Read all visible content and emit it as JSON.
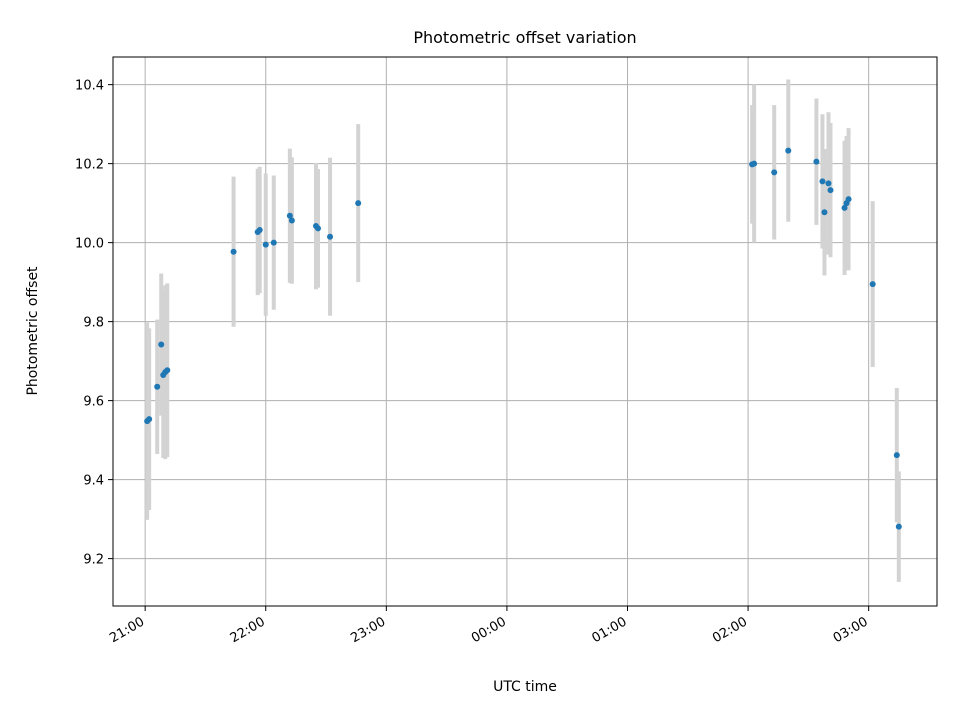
{
  "chart_data": {
    "type": "scatter",
    "title": "Photometric offset variation",
    "xlabel": "UTC time",
    "ylabel": "Photometric offset",
    "x_axis_type": "time",
    "xlim": [
      "20:44",
      "03:34"
    ],
    "ylim": [
      9.08,
      10.47
    ],
    "x_ticks": [
      {
        "time": "21:00",
        "label": "21:00"
      },
      {
        "time": "22:00",
        "label": "22:00"
      },
      {
        "time": "23:00",
        "label": "23:00"
      },
      {
        "time": "00:00",
        "label": "00:00"
      },
      {
        "time": "01:00",
        "label": "01:00"
      },
      {
        "time": "02:00",
        "label": "02:00"
      },
      {
        "time": "03:00",
        "label": "03:00"
      }
    ],
    "y_ticks": [
      {
        "value": 9.2,
        "label": "9.2"
      },
      {
        "value": 9.4,
        "label": "9.4"
      },
      {
        "value": 9.6,
        "label": "9.6"
      },
      {
        "value": 9.8,
        "label": "9.8"
      },
      {
        "value": 10.0,
        "label": "10.0"
      },
      {
        "value": 10.2,
        "label": "10.2"
      },
      {
        "value": 10.4,
        "label": "10.4"
      }
    ],
    "grid": true,
    "legend": false,
    "colors": {
      "point": "#1f77b4",
      "errorbar": "#d3d3d3",
      "grid": "#b0b0b0"
    },
    "points": [
      {
        "time": "21:01",
        "y": 9.548,
        "err": 0.25
      },
      {
        "time": "21:02",
        "y": 9.553,
        "err": 0.23
      },
      {
        "time": "21:06",
        "y": 9.635,
        "err": 0.17
      },
      {
        "time": "21:08",
        "y": 9.742,
        "err": 0.18
      },
      {
        "time": "21:09",
        "y": 9.665,
        "err": 0.21
      },
      {
        "time": "21:10",
        "y": 9.672,
        "err": 0.22
      },
      {
        "time": "21:11",
        "y": 9.677,
        "err": 0.22
      },
      {
        "time": "21:44",
        "y": 9.977,
        "err": 0.19
      },
      {
        "time": "21:56",
        "y": 10.027,
        "err": 0.16
      },
      {
        "time": "21:57",
        "y": 10.032,
        "err": 0.16
      },
      {
        "time": "22:00",
        "y": 9.995,
        "err": 0.18
      },
      {
        "time": "22:04",
        "y": 10.0,
        "err": 0.17
      },
      {
        "time": "22:12",
        "y": 10.068,
        "err": 0.17
      },
      {
        "time": "22:13",
        "y": 10.056,
        "err": 0.16
      },
      {
        "time": "22:25",
        "y": 10.042,
        "err": 0.16
      },
      {
        "time": "22:26",
        "y": 10.036,
        "err": 0.15
      },
      {
        "time": "22:32",
        "y": 10.015,
        "err": 0.2
      },
      {
        "time": "22:46",
        "y": 10.1,
        "err": 0.2
      },
      {
        "time": "02:02",
        "y": 10.198,
        "err": 0.15
      },
      {
        "time": "02:03",
        "y": 10.2,
        "err": 0.2
      },
      {
        "time": "02:13",
        "y": 10.178,
        "err": 0.17
      },
      {
        "time": "02:20",
        "y": 10.233,
        "err": 0.18
      },
      {
        "time": "02:34",
        "y": 10.205,
        "err": 0.16
      },
      {
        "time": "02:37",
        "y": 10.155,
        "err": 0.17
      },
      {
        "time": "02:38",
        "y": 10.077,
        "err": 0.16
      },
      {
        "time": "02:40",
        "y": 10.15,
        "err": 0.18
      },
      {
        "time": "02:41",
        "y": 10.133,
        "err": 0.17
      },
      {
        "time": "02:48",
        "y": 10.088,
        "err": 0.17
      },
      {
        "time": "02:49",
        "y": 10.1,
        "err": 0.17
      },
      {
        "time": "02:50",
        "y": 10.11,
        "err": 0.18
      },
      {
        "time": "03:02",
        "y": 9.895,
        "err": 0.21
      },
      {
        "time": "03:14",
        "y": 9.462,
        "err": 0.17
      },
      {
        "time": "03:15",
        "y": 9.281,
        "err": 0.14
      }
    ]
  }
}
